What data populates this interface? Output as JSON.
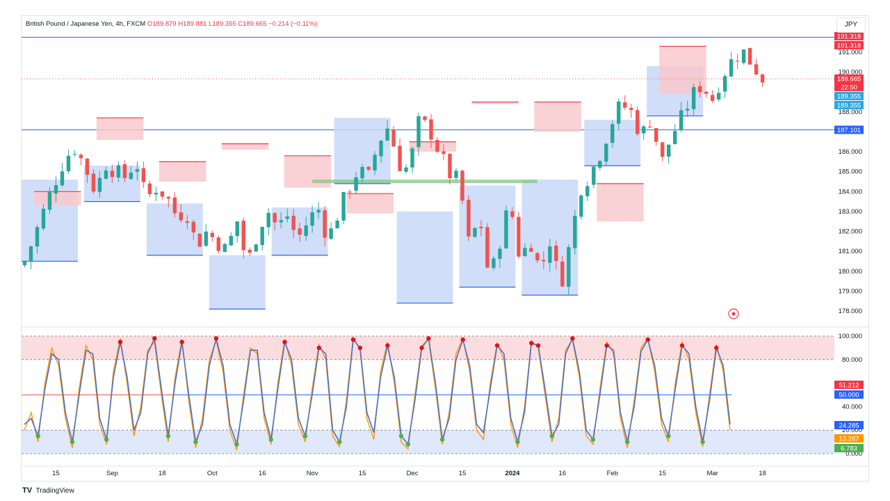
{
  "header": {
    "symbol": "British Pound / Japanese Yen, 4h, FXCM",
    "ohlc": "O189.879  H189.881  L189.355  C189.665  −0.214 (−0.11%)"
  },
  "currency_label": "JPY",
  "branding": {
    "logo": "TV",
    "name": "TradingView"
  },
  "colors": {
    "up": "#26a69a",
    "down": "#ef5350",
    "resistance_fill": "#f9c9cc",
    "support_fill": "#c9d8f8",
    "support_line": "#2962ff",
    "resistance_line": "#f23645",
    "zone": "#81c784",
    "osc_blue": "#4a6fc7",
    "osc_orange": "#ff9800",
    "dot_red": "#e0121f",
    "dot_green": "#4caf50"
  },
  "chart_data": [
    {
      "type": "candlestick",
      "title": "British Pound / Japanese Yen, 4h, FXCM",
      "ylim": [
        177.5,
        191.8
      ],
      "y_ticks": [
        178.0,
        179.0,
        180.0,
        181.0,
        182.0,
        183.0,
        184.0,
        185.0,
        186.0,
        188.0,
        190.0,
        191.0
      ],
      "x_ticks": [
        "15",
        "Sep",
        "18",
        "Oct",
        "16",
        "Nov",
        "15",
        "Dec",
        "15",
        "2024",
        "16",
        "Feb",
        "15",
        "Mar",
        "18"
      ],
      "x_tick_index": [
        5,
        14,
        22,
        30,
        38,
        46,
        54,
        62,
        70,
        78,
        86,
        94,
        102,
        110,
        118
      ],
      "close_path": [
        180.5,
        181.8,
        183.2,
        184.5,
        185.7,
        186.2,
        185.2,
        184.0,
        185.4,
        185.0,
        184.7,
        185.6,
        183.6,
        184.2,
        183.8,
        182.8,
        183.0,
        181.3,
        182.0,
        181.5,
        181.0,
        182.6,
        180.3,
        181.9,
        183.1,
        182.2,
        182.8,
        181.6,
        182.5,
        183.2,
        181.6,
        182.9,
        184.1,
        185.1,
        184.7,
        186.5,
        187.3,
        185.4,
        185.1,
        187.5,
        187.2,
        186.0,
        184.9,
        184.5,
        181.2,
        182.8,
        179.5,
        181.5,
        183.5,
        180.6,
        181.6,
        180.0,
        181.6,
        179.2,
        181.5,
        184.2,
        184.9,
        186.0,
        187.4,
        188.4,
        188.0,
        186.8,
        187.7,
        185.4,
        186.8,
        187.7,
        188.8,
        189.4,
        188.6,
        189.8,
        190.6,
        191.1,
        190.4,
        189.7
      ],
      "levels": [
        {
          "label": "191.318",
          "value": 191.318,
          "color": "#f23645"
        },
        {
          "label": "191.318",
          "value": 191.318,
          "color": "#f23645"
        },
        {
          "label": "189.665",
          "value": 189.665,
          "color": "#f23645"
        },
        {
          "label": "22:50",
          "value": 189.665,
          "color": "#f23645"
        },
        {
          "label": "189.355",
          "value": 189.355,
          "color": "#2ca7e0"
        },
        {
          "label": "189.355",
          "value": 189.355,
          "color": "#2ca7e0"
        },
        {
          "label": "187.101",
          "value": 187.101,
          "color": "#2962ff"
        }
      ],
      "horizontal_lines": [
        191.75,
        187.101
      ],
      "support_zone": [
        184.45,
        184.6
      ],
      "resistance_blocks": [
        [
          183.3,
          184.0
        ],
        [
          186.6,
          187.7
        ],
        [
          184.5,
          185.5
        ],
        [
          186.1,
          186.4
        ],
        [
          184.2,
          185.8
        ],
        [
          182.9,
          183.9
        ],
        [
          186.0,
          186.5
        ],
        [
          188.5,
          188.4
        ],
        [
          187.0,
          188.5
        ],
        [
          182.5,
          184.4
        ],
        [
          188.9,
          191.3
        ]
      ],
      "support_blocks": [
        [
          180.5,
          184.6
        ],
        [
          183.5,
          185.3
        ],
        [
          180.8,
          183.4
        ],
        [
          178.1,
          180.8
        ],
        [
          180.8,
          183.2
        ],
        [
          184.4,
          187.7
        ],
        [
          178.4,
          183.0
        ],
        [
          179.2,
          184.3
        ],
        [
          178.8,
          184.6
        ],
        [
          185.3,
          187.6
        ],
        [
          187.8,
          190.3
        ]
      ]
    },
    {
      "type": "line",
      "title": "",
      "ylim": [
        0,
        100
      ],
      "y_ticks": [
        0.0,
        20.0,
        40.0,
        50.0,
        80.0,
        100.0
      ],
      "levels": [
        {
          "label": "51.212",
          "value": 51.212,
          "color": "#f23645"
        },
        {
          "label": "50.000",
          "value": 50.0,
          "color": "#2962ff"
        },
        {
          "label": "24.285",
          "value": 24.285,
          "color": "#2962ff"
        },
        {
          "label": "13.287",
          "value": 13.287,
          "color": "#ff9800"
        },
        {
          "label": "6.783",
          "value": 6.783,
          "color": "#4caf50"
        }
      ],
      "overbought_band": [
        80,
        100
      ],
      "oversold_band": [
        0,
        20
      ],
      "series": [
        {
          "values": [
            20,
            35,
            10,
            60,
            90,
            75,
            30,
            5,
            55,
            92,
            80,
            25,
            8,
            70,
            98,
            60,
            15,
            40,
            88,
            95,
            50,
            10,
            65,
            97,
            45,
            5,
            30,
            80,
            96,
            70,
            20,
            3,
            50,
            90,
            85,
            30,
            8,
            60,
            97,
            75,
            25,
            10,
            55,
            93,
            80,
            15,
            6,
            45,
            99,
            88,
            30,
            12,
            70,
            95,
            60,
            10,
            4,
            50,
            92,
            97,
            55,
            8,
            35,
            85,
            98,
            70,
            20,
            12,
            60,
            94,
            80,
            25,
            5,
            40,
            96,
            90,
            50,
            10,
            30,
            88,
            97,
            65,
            15,
            8,
            55,
            95,
            85,
            30,
            5,
            45,
            90,
            98,
            70,
            25,
            10,
            60,
            95,
            80,
            35,
            6,
            50,
            93,
            70,
            20
          ]
        },
        {
          "values": [
            25,
            30,
            15,
            55,
            85,
            80,
            35,
            10,
            50,
            88,
            85,
            30,
            12,
            65,
            95,
            65,
            20,
            35,
            85,
            98,
            55,
            15,
            60,
            95,
            50,
            10,
            25,
            75,
            98,
            75,
            25,
            8,
            45,
            88,
            88,
            35,
            12,
            55,
            95,
            80,
            30,
            15,
            50,
            90,
            85,
            20,
            10,
            40,
            97,
            90,
            35,
            18,
            65,
            92,
            65,
            15,
            8,
            45,
            90,
            98,
            60,
            12,
            30,
            80,
            97,
            75,
            25,
            18,
            55,
            92,
            85,
            30,
            10,
            35,
            94,
            92,
            55,
            15,
            25,
            85,
            98,
            70,
            20,
            12,
            50,
            92,
            88,
            35,
            10,
            40,
            87,
            97,
            75,
            30,
            15,
            55,
            92,
            85,
            40,
            10,
            45,
            90,
            75,
            25
          ]
        }
      ]
    }
  ]
}
